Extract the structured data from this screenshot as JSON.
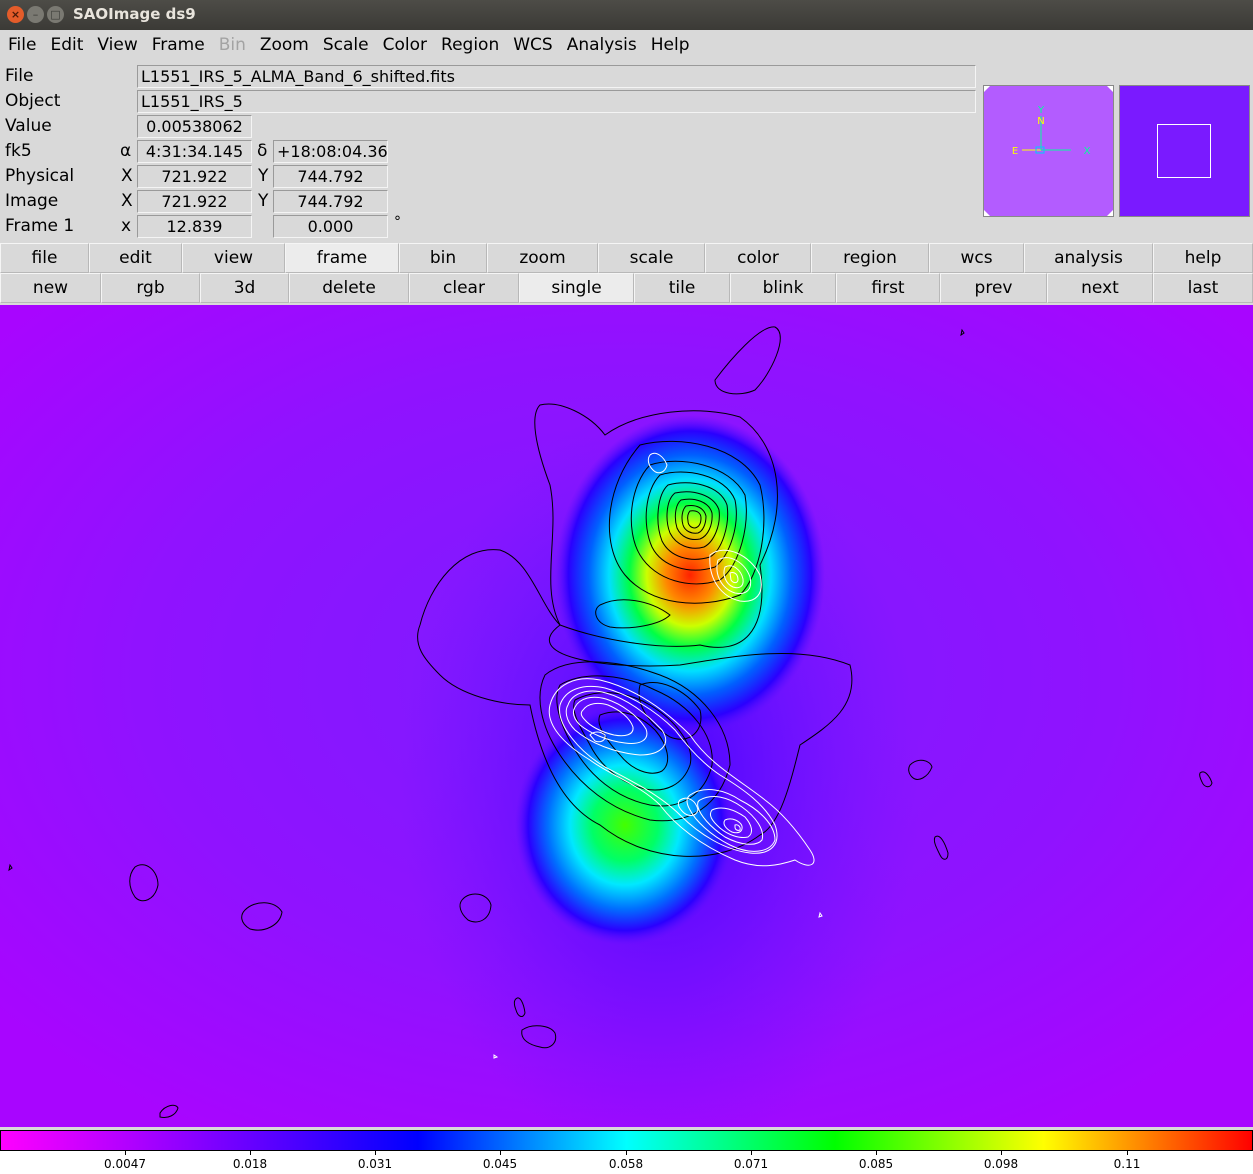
{
  "window": {
    "title": "SAOImage ds9",
    "close_glyph": "×",
    "min_glyph": "–",
    "max_glyph": "□"
  },
  "menubar": [
    "File",
    "Edit",
    "View",
    "Frame",
    "Bin",
    "Zoom",
    "Scale",
    "Color",
    "Region",
    "WCS",
    "Analysis",
    "Help"
  ],
  "menubar_disabled": [
    "Bin"
  ],
  "info": {
    "file_label": "File",
    "file_value": "L1551_IRS_5_ALMA_Band_6_shifted.fits",
    "object_label": "Object",
    "object_value": "L1551_IRS_5",
    "value_label": "Value",
    "value_value": "0.00538062",
    "wcs_label": "fk5",
    "alpha_symbol": "α",
    "alpha_value": "4:31:34.145",
    "delta_symbol": "δ",
    "delta_value": "+18:08:04.36",
    "physical_label": "Physical",
    "physical_x_label": "X",
    "physical_x": "721.922",
    "physical_y_label": "Y",
    "physical_y": "744.792",
    "image_label": "Image",
    "image_x_label": "X",
    "image_x": "721.922",
    "image_y_label": "Y",
    "image_y": "744.792",
    "frame_label": "Frame 1",
    "frame_x_label": "x",
    "frame_zoom": "12.839",
    "frame_angle": "0.000",
    "degree_symbol": "°"
  },
  "panner": {
    "north_label": "N",
    "y_label": "Y",
    "east_label": "E",
    "x_label": "X"
  },
  "button_row_1": [
    "file",
    "edit",
    "view",
    "frame",
    "bin",
    "zoom",
    "scale",
    "color",
    "region",
    "wcs",
    "analysis",
    "help"
  ],
  "button_row_1_active": "frame",
  "button_row_2": [
    "new",
    "rgb",
    "3d",
    "delete",
    "clear",
    "single",
    "tile",
    "blink",
    "first",
    "prev",
    "next",
    "last"
  ],
  "button_row_2_active": "single",
  "colorbar": {
    "colormap": "rainbow",
    "ticks": [
      "0.0047",
      "0.018",
      "0.031",
      "0.045",
      "0.058",
      "0.071",
      "0.085",
      "0.098",
      "0.11"
    ],
    "colors": [
      "#ff00ff",
      "#8000ff",
      "#0000ff",
      "#00ffff",
      "#00ff00",
      "#ffff00",
      "#ff0000"
    ]
  },
  "colors": {
    "background_magenta": "#a10bff",
    "contour_black": "#000000",
    "contour_white": "#ffffff"
  }
}
